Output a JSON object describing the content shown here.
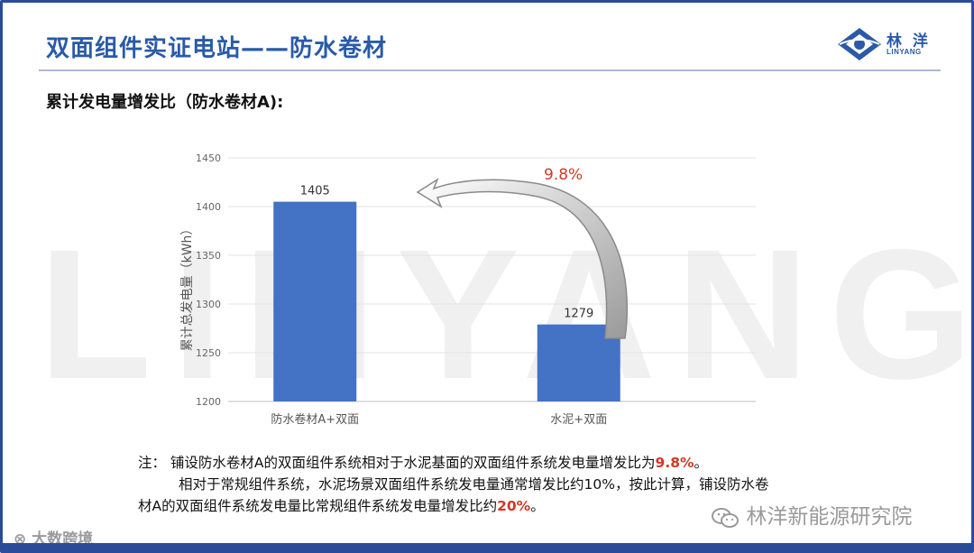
{
  "header": {
    "title": "双面组件实证电站——防水卷材",
    "logo_name": "林 洋",
    "logo_sub": "LINYANG",
    "brand_color": "#2a5aa8"
  },
  "subtitle": "累计发电量增发比（防水卷材A):",
  "watermark_text": "LINYANG",
  "chart_data": {
    "type": "bar",
    "categories": [
      "防水卷材A+双面",
      "水泥+双面"
    ],
    "values": [
      1405,
      1279
    ],
    "data_labels": [
      "1405",
      "1279"
    ],
    "ylabel": "累计总发电量（kWh）",
    "ylim": [
      1200,
      1450
    ],
    "yticks": [
      "1200",
      "1250",
      "1300",
      "1350",
      "1400",
      "1450"
    ],
    "bar_color": "#4472c4",
    "grid": true,
    "annotation": {
      "text": "9.8%",
      "color": "#d03a2a",
      "from": "水泥+双面",
      "to": "防水卷材A+双面"
    }
  },
  "note": {
    "line1_prefix": "注： 铺设防水卷材A的双面组件系统相对于水泥基面的双面组件系统发电量增发比为",
    "line1_value": "9.8%",
    "line1_end": "。",
    "line2": "相对于常规组件系统，水泥场景双面组件系统发电量通常增发比约10%，按此计算，铺设防水卷",
    "line3_prefix": "材A的双面组件系统发电量比常规组件系统发电量增发比约",
    "line3_value": "20%",
    "line3_end": "。"
  },
  "wechat_label": "林洋新能源研究院",
  "corner_watermark": "大数跨境"
}
